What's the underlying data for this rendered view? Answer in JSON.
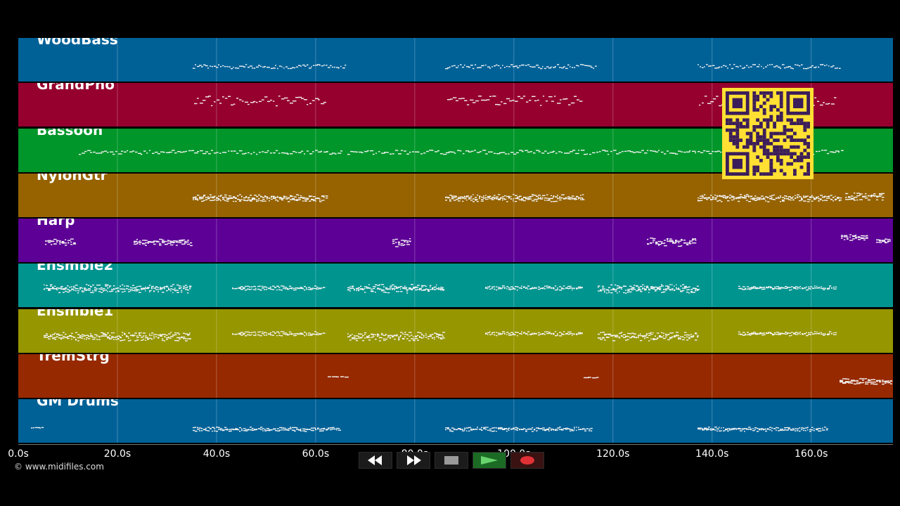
{
  "tracks": [
    {
      "name": "WoodBass",
      "color": "#006197"
    },
    {
      "name": "GrandPno",
      "color": "#96002f"
    },
    {
      "name": "Bassoon",
      "color": "#00962a"
    },
    {
      "name": "NylonGtr",
      "color": "#966300"
    },
    {
      "name": "Harp",
      "color": "#5d0096"
    },
    {
      "name": "Ensmble2",
      "color": "#00948f"
    },
    {
      "name": "Ensmble1",
      "color": "#969600"
    },
    {
      "name": "TremStrg",
      "color": "#962900"
    },
    {
      "name": "GM Drums",
      "color": "#006197"
    }
  ],
  "timeline": {
    "ticks": [
      "0.0s",
      "20.0s",
      "40.0s",
      "60.0s",
      "80.0s",
      "100.0s",
      "120.0s",
      "140.0s",
      "160.0s"
    ]
  },
  "footer": {
    "copyright": "© www.midifiles.com"
  },
  "transport": {
    "rewind_icon": "rewind-icon",
    "forward_icon": "fast-forward-icon",
    "stop_icon": "stop-icon",
    "play_icon": "play-icon",
    "record_icon": "record-icon"
  },
  "overlay": {
    "qr_icon": "qr-code-icon",
    "qr_color": "#ffe033"
  }
}
